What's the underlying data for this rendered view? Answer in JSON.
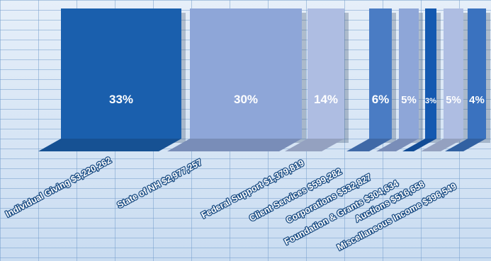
{
  "chart_data": {
    "type": "bar",
    "title": "",
    "xlabel": "",
    "ylabel": "",
    "categories": [
      "Individual Giving $3,220,262",
      "State of NH $2,977,257",
      "Federal Support $1,379,819",
      "Client Services $599,282",
      "Corporations $532,827",
      "Foundation & Grants $304,634",
      "Auctions $516,658",
      "Miscellaneous Income $396,549"
    ],
    "values": [
      3220262,
      2977257,
      1379819,
      599282,
      532827,
      304634,
      516658,
      396549
    ],
    "percent_labels": [
      "33%",
      "30%",
      "14%",
      "6%",
      "5%",
      "3%",
      "5%",
      "4%"
    ],
    "bar_colors": [
      "#1a5fad",
      "#8ea6d8",
      "#aebde2",
      "#4a7cc4",
      "#8ea6d8",
      "#1459b0",
      "#aebde2",
      "#3a72bf"
    ],
    "grid": true,
    "legend": "none"
  }
}
